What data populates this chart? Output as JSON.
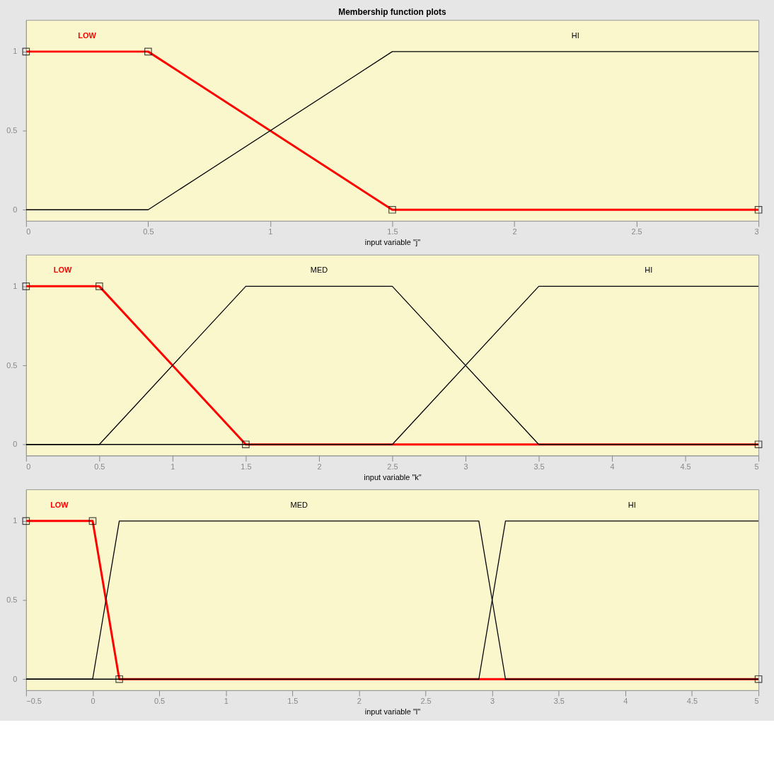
{
  "chart_data": [
    {
      "type": "line",
      "title": "Membership function plots",
      "xlabel": "input variable \"j\"",
      "xlim": [
        0,
        3
      ],
      "xticks": [
        0,
        0.5,
        1,
        1.5,
        2,
        2.5,
        3
      ],
      "ylim": [
        -0.07,
        1.2
      ],
      "yticks": [
        0,
        0.5,
        1
      ],
      "grid": false,
      "legend": false,
      "series": [
        {
          "name": "LOW",
          "color": "#ff0000",
          "marker": "square",
          "x": [
            0,
            0.5,
            1.5,
            3
          ],
          "values": [
            1,
            1,
            0,
            0
          ]
        },
        {
          "name": "HI",
          "color": "#000000",
          "x": [
            0,
            0.5,
            1.5,
            3
          ],
          "values": [
            0,
            0,
            1,
            1
          ]
        }
      ]
    },
    {
      "type": "line",
      "xlabel": "input variable \"k\"",
      "xlim": [
        0,
        5
      ],
      "xticks": [
        0,
        0.5,
        1,
        1.5,
        2,
        2.5,
        3,
        3.5,
        4,
        4.5,
        5
      ],
      "ylim": [
        -0.07,
        1.2
      ],
      "yticks": [
        0,
        0.5,
        1
      ],
      "grid": false,
      "legend": false,
      "series": [
        {
          "name": "LOW",
          "color": "#ff0000",
          "marker": "square",
          "x": [
            0,
            0.5,
            1.5,
            5
          ],
          "values": [
            1,
            1,
            0,
            0
          ]
        },
        {
          "name": "MED",
          "color": "#000000",
          "x": [
            0,
            0.5,
            1.5,
            2.5,
            3.5,
            5
          ],
          "values": [
            0,
            0,
            1,
            1,
            0,
            0
          ]
        },
        {
          "name": "HI",
          "color": "#000000",
          "x": [
            0,
            2.5,
            3.5,
            5
          ],
          "values": [
            0,
            0,
            1,
            1
          ]
        }
      ]
    },
    {
      "type": "line",
      "xlabel": "input variable \"l\"",
      "xlim": [
        -0.5,
        5
      ],
      "xticks": [
        -0.5,
        0,
        0.5,
        1,
        1.5,
        2,
        2.5,
        3,
        3.5,
        4,
        4.5,
        5
      ],
      "ylim": [
        -0.07,
        1.2
      ],
      "yticks": [
        0,
        0.5,
        1
      ],
      "grid": false,
      "legend": false,
      "series": [
        {
          "name": "LOW",
          "color": "#ff0000",
          "marker": "square",
          "x": [
            -0.5,
            0,
            0.2,
            5
          ],
          "values": [
            1,
            1,
            0,
            0
          ]
        },
        {
          "name": "MED",
          "color": "#000000",
          "x": [
            -0.5,
            0,
            0.2,
            2.9,
            3.1,
            5
          ],
          "values": [
            0,
            0,
            1,
            1,
            0,
            0
          ]
        },
        {
          "name": "HI",
          "color": "#000000",
          "x": [
            -0.5,
            2.9,
            3.1,
            5
          ],
          "values": [
            0,
            0,
            1,
            1
          ]
        }
      ]
    }
  ]
}
